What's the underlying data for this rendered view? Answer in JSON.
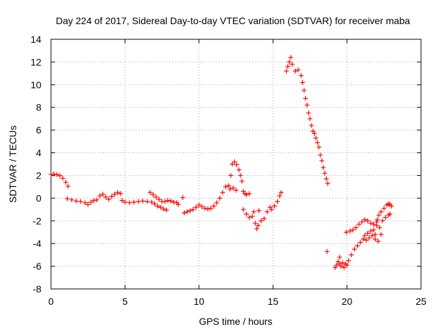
{
  "chart_data": {
    "type": "scatter",
    "title": "Day 224 of 2017, Sidereal Day-to-day VTEC variation (SDTVAR) for receiver maba",
    "xlabel": "GPS time / hours",
    "ylabel": "SDTVAR / TECUs",
    "xlim": [
      0,
      25
    ],
    "ylim": [
      -8,
      14
    ],
    "xticks": [
      "0",
      "5",
      "10",
      "15",
      "20",
      "25"
    ],
    "yticks": [
      "-8",
      "-6",
      "-4",
      "-2",
      "0",
      "2",
      "4",
      "6",
      "8",
      "10",
      "12",
      "14"
    ],
    "grid": true,
    "marker": "+",
    "colors": {
      "series": "#ff0000",
      "grid": "#a0a0a0",
      "axis": "#000000"
    },
    "series": [
      {
        "points": [
          [
            0.0,
            2.1
          ],
          [
            0.2,
            2.12
          ],
          [
            0.4,
            2.08
          ],
          [
            0.6,
            1.98
          ],
          [
            0.8,
            1.75
          ],
          [
            1.0,
            1.4
          ],
          [
            1.15,
            1.05
          ],
          [
            1.1,
            -0.05
          ],
          [
            1.4,
            -0.15
          ],
          [
            1.7,
            -0.25
          ],
          [
            2.0,
            -0.3
          ],
          [
            2.3,
            -0.4
          ],
          [
            2.5,
            -0.55
          ],
          [
            2.7,
            -0.35
          ],
          [
            2.9,
            -0.2
          ],
          [
            3.1,
            -0.15
          ],
          [
            3.3,
            0.2
          ],
          [
            3.5,
            0.35
          ],
          [
            3.7,
            0.1
          ],
          [
            3.9,
            -0.1
          ],
          [
            4.1,
            0.15
          ],
          [
            4.3,
            0.35
          ],
          [
            4.5,
            0.5
          ],
          [
            4.7,
            0.4
          ],
          [
            4.8,
            -0.2
          ],
          [
            5.0,
            -0.35
          ],
          [
            5.3,
            -0.4
          ],
          [
            5.6,
            -0.35
          ],
          [
            5.9,
            -0.3
          ],
          [
            6.2,
            -0.25
          ],
          [
            6.5,
            -0.3
          ],
          [
            6.8,
            -0.35
          ],
          [
            7.0,
            -0.5
          ],
          [
            7.2,
            -0.7
          ],
          [
            7.4,
            -0.8
          ],
          [
            7.6,
            -0.95
          ],
          [
            7.8,
            -1.05
          ],
          [
            6.7,
            0.5
          ],
          [
            6.9,
            0.3
          ],
          [
            7.1,
            0.1
          ],
          [
            7.3,
            -0.1
          ],
          [
            7.5,
            -0.3
          ],
          [
            7.7,
            -0.3
          ],
          [
            7.9,
            -0.2
          ],
          [
            8.1,
            -0.25
          ],
          [
            8.3,
            -0.35
          ],
          [
            8.5,
            -0.4
          ],
          [
            8.6,
            -0.55
          ],
          [
            8.9,
            0.05
          ],
          [
            9.0,
            -1.3
          ],
          [
            9.2,
            -1.2
          ],
          [
            9.4,
            -1.1
          ],
          [
            9.6,
            -1.0
          ],
          [
            9.8,
            -0.8
          ],
          [
            10.0,
            -0.6
          ],
          [
            10.2,
            -0.75
          ],
          [
            10.4,
            -0.9
          ],
          [
            10.6,
            -0.95
          ],
          [
            10.8,
            -0.9
          ],
          [
            11.0,
            -0.7
          ],
          [
            11.2,
            -0.4
          ],
          [
            11.4,
            0.0
          ],
          [
            11.6,
            0.5
          ],
          [
            11.8,
            1.0
          ],
          [
            12.0,
            1.1
          ],
          [
            12.1,
            0.8
          ],
          [
            12.15,
            2.0
          ],
          [
            12.25,
            3.0
          ],
          [
            12.4,
            3.2
          ],
          [
            12.55,
            2.95
          ],
          [
            12.7,
            2.5
          ],
          [
            12.8,
            2.0
          ],
          [
            12.9,
            1.5
          ],
          [
            12.3,
            0.9
          ],
          [
            12.5,
            0.7
          ],
          [
            13.0,
            0.6
          ],
          [
            13.1,
            0.4
          ],
          [
            13.2,
            0.3
          ],
          [
            13.4,
            0.4
          ],
          [
            13.0,
            -1.0
          ],
          [
            13.2,
            -1.4
          ],
          [
            13.4,
            -1.7
          ],
          [
            13.6,
            -1.6
          ],
          [
            13.8,
            -2.2
          ],
          [
            13.9,
            -2.7
          ],
          [
            14.0,
            -2.4
          ],
          [
            14.2,
            -2.0
          ],
          [
            14.4,
            -1.8
          ],
          [
            14.6,
            -1.2
          ],
          [
            14.8,
            -0.8
          ],
          [
            13.7,
            -1.2
          ],
          [
            14.05,
            -1.1
          ],
          [
            14.9,
            -1.0
          ],
          [
            15.1,
            -0.7
          ],
          [
            15.3,
            -0.3
          ],
          [
            15.45,
            0.2
          ],
          [
            15.55,
            0.5
          ],
          [
            15.9,
            11.2
          ],
          [
            16.0,
            11.6
          ],
          [
            16.1,
            12.0
          ],
          [
            16.2,
            12.4
          ],
          [
            16.3,
            11.8
          ],
          [
            16.5,
            11.2
          ],
          [
            16.7,
            11.3
          ],
          [
            16.9,
            10.8
          ],
          [
            17.0,
            10.2
          ],
          [
            17.1,
            9.5
          ],
          [
            17.2,
            8.8
          ],
          [
            17.3,
            8.2
          ],
          [
            17.4,
            7.5
          ],
          [
            17.5,
            7.0
          ],
          [
            17.6,
            6.4
          ],
          [
            17.7,
            5.9
          ],
          [
            17.8,
            5.7
          ],
          [
            17.9,
            5.3
          ],
          [
            18.0,
            4.9
          ],
          [
            18.1,
            4.5
          ],
          [
            18.2,
            3.8
          ],
          [
            18.3,
            3.3
          ],
          [
            18.4,
            2.7
          ],
          [
            18.5,
            2.2
          ],
          [
            18.6,
            1.7
          ],
          [
            18.7,
            1.3
          ],
          [
            18.65,
            -4.7
          ],
          [
            19.3,
            -5.9
          ],
          [
            19.4,
            -5.6
          ],
          [
            19.5,
            -5.8
          ],
          [
            19.6,
            -6.0
          ],
          [
            19.7,
            -5.7
          ],
          [
            19.8,
            -6.1
          ],
          [
            19.9,
            -5.8
          ],
          [
            20.0,
            -5.9
          ],
          [
            19.5,
            -5.2
          ],
          [
            19.2,
            -6.1
          ],
          [
            19.95,
            -3.0
          ],
          [
            20.2,
            -2.9
          ],
          [
            20.4,
            -2.8
          ],
          [
            20.6,
            -2.6
          ],
          [
            20.8,
            -2.3
          ],
          [
            21.0,
            -2.1
          ],
          [
            21.2,
            -1.9
          ],
          [
            21.4,
            -2.0
          ],
          [
            21.6,
            -2.2
          ],
          [
            21.8,
            -2.3
          ],
          [
            22.0,
            -2.1
          ],
          [
            20.1,
            -5.5
          ],
          [
            20.3,
            -5.0
          ],
          [
            20.5,
            -4.5
          ],
          [
            20.7,
            -4.2
          ],
          [
            20.9,
            -3.9
          ],
          [
            21.1,
            -3.6
          ],
          [
            21.3,
            -3.7
          ],
          [
            21.5,
            -3.5
          ],
          [
            21.7,
            -3.3
          ],
          [
            21.9,
            -3.6
          ],
          [
            22.1,
            -3.8
          ],
          [
            22.3,
            -3.2
          ],
          [
            21.2,
            -3.3
          ],
          [
            21.4,
            -3.1
          ],
          [
            21.6,
            -2.9
          ],
          [
            21.8,
            -2.8
          ],
          [
            22.0,
            -2.4
          ],
          [
            22.2,
            -2.6
          ],
          [
            22.4,
            -2.0
          ],
          [
            22.6,
            -1.7
          ],
          [
            22.8,
            -1.5
          ],
          [
            22.9,
            -1.4
          ],
          [
            21.9,
            -3.2
          ],
          [
            22.05,
            -1.9
          ],
          [
            22.15,
            -1.5
          ],
          [
            22.3,
            -1.2
          ],
          [
            22.5,
            -0.9
          ],
          [
            22.7,
            -0.6
          ],
          [
            22.8,
            -0.5
          ],
          [
            22.9,
            -0.55
          ],
          [
            23.0,
            -0.7
          ]
        ]
      }
    ]
  }
}
